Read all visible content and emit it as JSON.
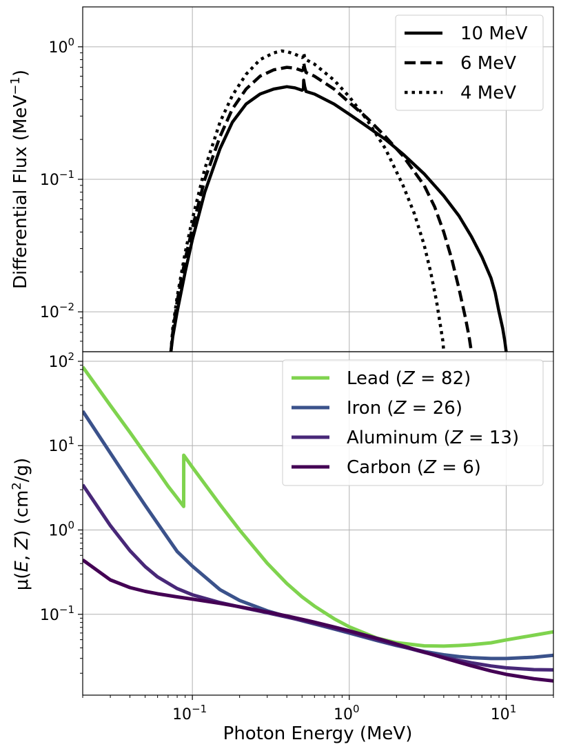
{
  "chart_data": [
    {
      "type": "line",
      "x_scale": "log",
      "y_scale": "log",
      "xlim": [
        0.02,
        20
      ],
      "ylim": [
        0.005,
        2
      ],
      "grid": true,
      "legend_position": "top-right",
      "ylabel": "Differential Flux (MeV",
      "ylabel_exp": "−1",
      "ylabel_end": ")",
      "y_ticks": [
        {
          "value": 1,
          "base": "10",
          "exp": "0"
        },
        {
          "value": 0.1,
          "base": "10",
          "exp": "−1"
        },
        {
          "value": 0.01,
          "base": "10",
          "exp": "−2"
        }
      ],
      "series": [
        {
          "name": "10 MeV",
          "style": "solid",
          "x": [
            0.073,
            0.075,
            0.08,
            0.09,
            0.1,
            0.12,
            0.15,
            0.18,
            0.22,
            0.27,
            0.33,
            0.4,
            0.45,
            0.5,
            0.51,
            0.512,
            0.52,
            0.53,
            0.6,
            0.8,
            1.0,
            1.3,
            1.7,
            2.2,
            3.0,
            4.0,
            5.0,
            6.0,
            7.0,
            8.0,
            8.5,
            9.0,
            9.5,
            9.8,
            10.0
          ],
          "y": [
            0.005,
            0.0065,
            0.01,
            0.02,
            0.035,
            0.08,
            0.17,
            0.27,
            0.37,
            0.44,
            0.48,
            0.5,
            0.49,
            0.47,
            0.48,
            0.56,
            0.5,
            0.46,
            0.44,
            0.37,
            0.31,
            0.25,
            0.2,
            0.155,
            0.11,
            0.075,
            0.053,
            0.037,
            0.026,
            0.018,
            0.014,
            0.01,
            0.0075,
            0.006,
            0.005
          ]
        },
        {
          "name": "6 MeV",
          "style": "dashed",
          "x": [
            0.073,
            0.075,
            0.08,
            0.09,
            0.1,
            0.12,
            0.15,
            0.18,
            0.22,
            0.27,
            0.33,
            0.4,
            0.45,
            0.5,
            0.51,
            0.512,
            0.52,
            0.53,
            0.6,
            0.8,
            1.0,
            1.3,
            1.7,
            2.2,
            3.0,
            3.5,
            4.0,
            4.5,
            5.0,
            5.5,
            5.8,
            6.0
          ],
          "y": [
            0.005,
            0.007,
            0.012,
            0.025,
            0.043,
            0.1,
            0.21,
            0.34,
            0.48,
            0.6,
            0.67,
            0.7,
            0.69,
            0.66,
            0.67,
            0.76,
            0.69,
            0.64,
            0.6,
            0.48,
            0.38,
            0.29,
            0.21,
            0.15,
            0.09,
            0.062,
            0.04,
            0.025,
            0.015,
            0.009,
            0.0065,
            0.005
          ]
        },
        {
          "name": "4 MeV",
          "style": "dotted",
          "x": [
            0.073,
            0.075,
            0.08,
            0.09,
            0.1,
            0.12,
            0.15,
            0.18,
            0.22,
            0.27,
            0.33,
            0.37,
            0.4,
            0.45,
            0.5,
            0.51,
            0.512,
            0.52,
            0.53,
            0.6,
            0.8,
            1.0,
            1.3,
            1.7,
            2.2,
            2.6,
            3.0,
            3.3,
            3.6,
            3.8,
            3.95,
            4.0
          ],
          "y": [
            0.005,
            0.0075,
            0.013,
            0.028,
            0.05,
            0.12,
            0.27,
            0.43,
            0.62,
            0.8,
            0.9,
            0.93,
            0.92,
            0.88,
            0.83,
            0.84,
            0.9,
            0.83,
            0.8,
            0.74,
            0.56,
            0.42,
            0.28,
            0.17,
            0.09,
            0.055,
            0.032,
            0.02,
            0.012,
            0.008,
            0.006,
            0.005
          ]
        }
      ]
    },
    {
      "type": "line",
      "x_scale": "log",
      "y_scale": "log",
      "xlim": [
        0.02,
        20
      ],
      "ylim": [
        0.011,
        130
      ],
      "grid": true,
      "legend_position": "top-right",
      "xlabel": "Photon Energy (MeV)",
      "ylabel_mu": "μ(",
      "ylabel_e": "E",
      "ylabel_comma": ", ",
      "ylabel_z": "Z",
      "ylabel_mid": ") (cm",
      "ylabel_exp": "2",
      "ylabel_end": "/g)",
      "x_ticks": [
        {
          "value": 0.1,
          "base": "10",
          "exp": "−1"
        },
        {
          "value": 1,
          "base": "10",
          "exp": "0"
        },
        {
          "value": 10,
          "base": "10",
          "exp": "1"
        }
      ],
      "y_ticks": [
        {
          "value": 100,
          "base": "10",
          "exp": "2"
        },
        {
          "value": 10,
          "base": "10",
          "exp": "1"
        },
        {
          "value": 1,
          "base": "10",
          "exp": "0"
        },
        {
          "value": 0.1,
          "base": "10",
          "exp": "−1"
        }
      ],
      "series": [
        {
          "name": "Lead",
          "z_value": "82",
          "color": "#7fd34e",
          "x": [
            0.02,
            0.03,
            0.04,
            0.05,
            0.06,
            0.07,
            0.08,
            0.088,
            0.0881,
            0.1,
            0.15,
            0.2,
            0.3,
            0.4,
            0.5,
            0.6,
            0.8,
            1.0,
            1.5,
            2,
            3,
            4,
            5,
            6,
            8,
            10,
            15,
            20
          ],
          "y": [
            86,
            30,
            14.4,
            8.0,
            5.0,
            3.3,
            2.4,
            1.9,
            7.7,
            5.55,
            2.0,
            0.999,
            0.403,
            0.232,
            0.161,
            0.125,
            0.0887,
            0.071,
            0.0522,
            0.0461,
            0.0423,
            0.042,
            0.0427,
            0.0436,
            0.0459,
            0.0497,
            0.0565,
            0.062
          ]
        },
        {
          "name": "Iron",
          "z_value": "26",
          "color": "#3b528b",
          "x": [
            0.02,
            0.03,
            0.04,
            0.05,
            0.06,
            0.08,
            0.1,
            0.15,
            0.2,
            0.3,
            0.4,
            0.5,
            0.6,
            0.8,
            1.0,
            1.5,
            2,
            3,
            4,
            5,
            6,
            8,
            10,
            15,
            20
          ],
          "y": [
            25.7,
            8.18,
            3.63,
            1.96,
            1.2,
            0.5555,
            0.372,
            0.196,
            0.146,
            0.11,
            0.094,
            0.084,
            0.077,
            0.067,
            0.06,
            0.0488,
            0.0426,
            0.0362,
            0.0331,
            0.0315,
            0.0306,
            0.0299,
            0.0299,
            0.031,
            0.0326
          ]
        },
        {
          "name": "Aluminum",
          "z_value": "13",
          "color": "#482878",
          "x": [
            0.02,
            0.03,
            0.04,
            0.05,
            0.06,
            0.08,
            0.1,
            0.15,
            0.2,
            0.3,
            0.4,
            0.5,
            0.6,
            0.8,
            1.0,
            1.5,
            2,
            3,
            4,
            5,
            6,
            8,
            10,
            15,
            20
          ],
          "y": [
            3.44,
            1.128,
            0.5685,
            0.3681,
            0.2778,
            0.2018,
            0.1704,
            0.1378,
            0.1223,
            0.1042,
            0.0928,
            0.0845,
            0.078,
            0.0684,
            0.0615,
            0.05,
            0.0432,
            0.0354,
            0.0311,
            0.0284,
            0.0266,
            0.0244,
            0.0232,
            0.0221,
            0.0219
          ]
        },
        {
          "name": "Carbon",
          "z_value": "6",
          "color": "#440154",
          "x": [
            0.02,
            0.03,
            0.04,
            0.05,
            0.06,
            0.08,
            0.1,
            0.15,
            0.2,
            0.3,
            0.4,
            0.5,
            0.6,
            0.8,
            1.0,
            1.5,
            2,
            3,
            4,
            5,
            6,
            8,
            10,
            15,
            20
          ],
          "y": [
            0.442,
            0.256,
            0.2076,
            0.1871,
            0.1753,
            0.161,
            0.1514,
            0.1347,
            0.1229,
            0.1066,
            0.0955,
            0.0871,
            0.0806,
            0.0707,
            0.0636,
            0.0518,
            0.0444,
            0.0356,
            0.0304,
            0.027,
            0.0245,
            0.0213,
            0.0194,
            0.0172,
            0.0162
          ]
        }
      ]
    }
  ]
}
